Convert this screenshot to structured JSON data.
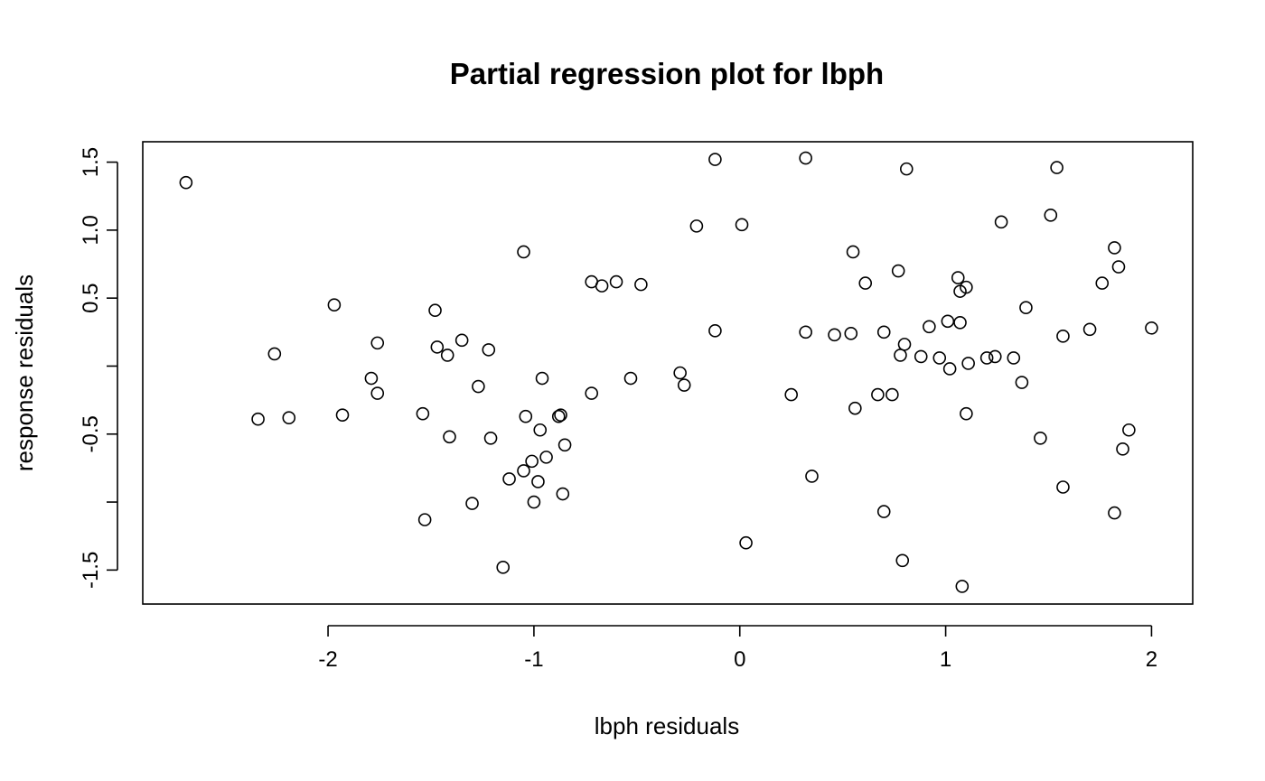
{
  "chart_data": {
    "type": "scatter",
    "title": "Partial regression plot for lbph",
    "xlabel": "lbph residuals",
    "ylabel": "response residuals",
    "xlim": [
      -2.9,
      2.2
    ],
    "ylim": [
      -1.75,
      1.65
    ],
    "xticks": [
      -2,
      -1,
      0,
      1,
      2
    ],
    "xtick_labels": [
      "-2",
      "-1",
      "0",
      "1",
      "2"
    ],
    "yticks": [
      -1.5,
      -0.5,
      0.5,
      1.0,
      1.5
    ],
    "ytick_labels": [
      "-1.5",
      "-0.5",
      "0.5",
      "1.0",
      "1.5"
    ],
    "yticks_unlabeled": [
      -1.0,
      0.0
    ],
    "grid": false,
    "legend": "none",
    "points": [
      [
        -2.69,
        1.35
      ],
      [
        -2.26,
        0.09
      ],
      [
        -2.34,
        -0.39
      ],
      [
        -2.19,
        -0.38
      ],
      [
        -1.97,
        0.45
      ],
      [
        -1.93,
        -0.36
      ],
      [
        -1.79,
        -0.09
      ],
      [
        -1.76,
        0.17
      ],
      [
        -1.76,
        -0.2
      ],
      [
        -1.54,
        -0.35
      ],
      [
        -1.53,
        -1.13
      ],
      [
        -1.48,
        0.41
      ],
      [
        -1.47,
        0.14
      ],
      [
        -1.42,
        0.08
      ],
      [
        -1.41,
        -0.52
      ],
      [
        -1.35,
        0.19
      ],
      [
        -1.3,
        -1.01
      ],
      [
        -1.27,
        -0.15
      ],
      [
        -1.22,
        0.12
      ],
      [
        -1.21,
        -0.53
      ],
      [
        -1.15,
        -1.48
      ],
      [
        -1.12,
        -0.83
      ],
      [
        -1.05,
        0.84
      ],
      [
        -1.05,
        -0.77
      ],
      [
        -1.04,
        -0.37
      ],
      [
        -1.01,
        -0.7
      ],
      [
        -1.0,
        -1.0
      ],
      [
        -0.98,
        -0.85
      ],
      [
        -0.97,
        -0.47
      ],
      [
        -0.96,
        -0.09
      ],
      [
        -0.94,
        -0.67
      ],
      [
        -0.88,
        -0.37
      ],
      [
        -0.87,
        -0.36
      ],
      [
        -0.86,
        -0.94
      ],
      [
        -0.85,
        -0.58
      ],
      [
        -0.72,
        0.62
      ],
      [
        -0.72,
        -0.2
      ],
      [
        -0.67,
        0.59
      ],
      [
        -0.6,
        0.62
      ],
      [
        -0.53,
        -0.09
      ],
      [
        -0.48,
        0.6
      ],
      [
        -0.29,
        -0.05
      ],
      [
        -0.27,
        -0.14
      ],
      [
        -0.21,
        1.03
      ],
      [
        -0.12,
        1.52
      ],
      [
        -0.12,
        0.26
      ],
      [
        0.01,
        1.04
      ],
      [
        0.03,
        -1.3
      ],
      [
        0.25,
        -0.21
      ],
      [
        0.32,
        1.53
      ],
      [
        0.32,
        0.25
      ],
      [
        0.35,
        -0.81
      ],
      [
        0.46,
        0.23
      ],
      [
        0.54,
        0.24
      ],
      [
        0.55,
        0.84
      ],
      [
        0.56,
        -0.31
      ],
      [
        0.61,
        0.61
      ],
      [
        0.67,
        -0.21
      ],
      [
        0.7,
        0.25
      ],
      [
        0.7,
        -1.07
      ],
      [
        0.74,
        -0.21
      ],
      [
        0.77,
        0.7
      ],
      [
        0.78,
        0.08
      ],
      [
        0.79,
        -1.43
      ],
      [
        0.8,
        0.16
      ],
      [
        0.81,
        1.45
      ],
      [
        0.88,
        0.07
      ],
      [
        0.92,
        0.29
      ],
      [
        0.97,
        0.06
      ],
      [
        1.01,
        0.33
      ],
      [
        1.02,
        -0.02
      ],
      [
        1.06,
        0.65
      ],
      [
        1.07,
        0.55
      ],
      [
        1.07,
        0.32
      ],
      [
        1.08,
        -1.62
      ],
      [
        1.1,
        0.58
      ],
      [
        1.1,
        -0.35
      ],
      [
        1.11,
        0.02
      ],
      [
        1.2,
        0.06
      ],
      [
        1.24,
        0.07
      ],
      [
        1.27,
        1.06
      ],
      [
        1.33,
        0.06
      ],
      [
        1.37,
        -0.12
      ],
      [
        1.39,
        0.43
      ],
      [
        1.46,
        -0.53
      ],
      [
        1.51,
        1.11
      ],
      [
        1.54,
        1.46
      ],
      [
        1.57,
        0.22
      ],
      [
        1.57,
        -0.89
      ],
      [
        1.7,
        0.27
      ],
      [
        1.76,
        0.61
      ],
      [
        1.82,
        0.87
      ],
      [
        1.82,
        -1.08
      ],
      [
        1.84,
        0.73
      ],
      [
        1.86,
        -0.61
      ],
      [
        1.89,
        -0.47
      ],
      [
        2.0,
        0.28
      ]
    ]
  }
}
